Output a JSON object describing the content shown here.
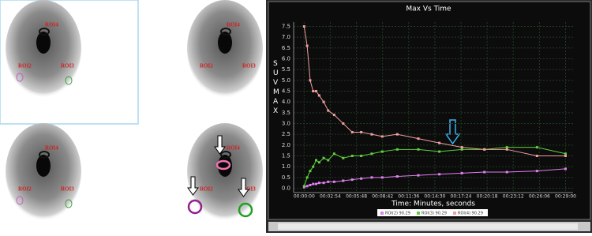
{
  "scans": [
    {
      "labels": [
        "ROI4",
        "ROI2",
        "ROI3"
      ]
    },
    {
      "labels": [
        "ROI4",
        "ROI2",
        "ROI3"
      ]
    },
    {
      "labels": [
        "ROI4",
        "ROI2",
        "ROI3"
      ]
    },
    {
      "labels": [
        "ROI4",
        "ROI2",
        "ROI3"
      ]
    }
  ],
  "chart_data": {
    "type": "line",
    "title": "Max Vs Time",
    "ylabel": "SUVMAX",
    "xlabel": "Time: Minutes, seconds",
    "x": [
      0,
      20,
      40,
      60,
      80,
      100,
      130,
      160,
      200,
      260,
      320,
      380,
      450,
      520,
      620,
      760,
      900,
      1050,
      1200,
      1350,
      1550,
      1740
    ],
    "series": [
      {
        "name": "ROI(2) 90.29",
        "color": "#e080f0",
        "values": [
          0.05,
          0.1,
          0.15,
          0.2,
          0.2,
          0.25,
          0.25,
          0.3,
          0.3,
          0.35,
          0.4,
          0.45,
          0.5,
          0.5,
          0.55,
          0.6,
          0.65,
          0.7,
          0.75,
          0.75,
          0.8,
          0.9
        ]
      },
      {
        "name": "ROI(3) 90.29",
        "color": "#60d040",
        "values": [
          0.1,
          0.5,
          0.8,
          1.0,
          1.3,
          1.2,
          1.4,
          1.3,
          1.6,
          1.4,
          1.5,
          1.5,
          1.6,
          1.7,
          1.8,
          1.8,
          1.7,
          1.8,
          1.8,
          1.9,
          1.9,
          1.6
        ]
      },
      {
        "name": "ROI(4) 90.29",
        "color": "#f0a0a0",
        "values": [
          7.5,
          6.6,
          5.0,
          4.5,
          4.5,
          4.3,
          4.0,
          3.6,
          3.4,
          3.0,
          2.6,
          2.6,
          2.5,
          2.4,
          2.5,
          2.3,
          2.1,
          1.9,
          1.8,
          1.8,
          1.5,
          1.5
        ]
      }
    ],
    "xlim": [
      -70,
      1790
    ],
    "xticks": [
      {
        "value": 0,
        "label": "00:00:00"
      },
      {
        "value": 174,
        "label": "00:02:54"
      },
      {
        "value": 348,
        "label": "00:05:48"
      },
      {
        "value": 522,
        "label": "00:08:42"
      },
      {
        "value": 696,
        "label": "00:11:36"
      },
      {
        "value": 870,
        "label": "00:14:30"
      },
      {
        "value": 1044,
        "label": "00:17:24"
      },
      {
        "value": 1218,
        "label": "00:20:18"
      },
      {
        "value": 1392,
        "label": "00:23:12"
      },
      {
        "value": 1566,
        "label": "00:26:06"
      },
      {
        "value": 1740,
        "label": "00:29:00"
      }
    ],
    "ylim": [
      -0.2,
      7.7
    ],
    "yticks": [
      {
        "value": 0,
        "label": "0.0"
      },
      0.5,
      {
        "value": 1,
        "label": "1.0"
      },
      1.5,
      {
        "value": 2,
        "label": "2.0"
      },
      2.5,
      {
        "value": 3,
        "label": "3.0"
      },
      3.5,
      {
        "value": 4,
        "label": "4.0"
      },
      4.5,
      {
        "value": 5,
        "label": "5.0"
      },
      5.5,
      {
        "value": 6,
        "label": "6.0"
      },
      6.5,
      {
        "value": 7,
        "label": "7.0"
      },
      7.5
    ],
    "grid": true
  }
}
